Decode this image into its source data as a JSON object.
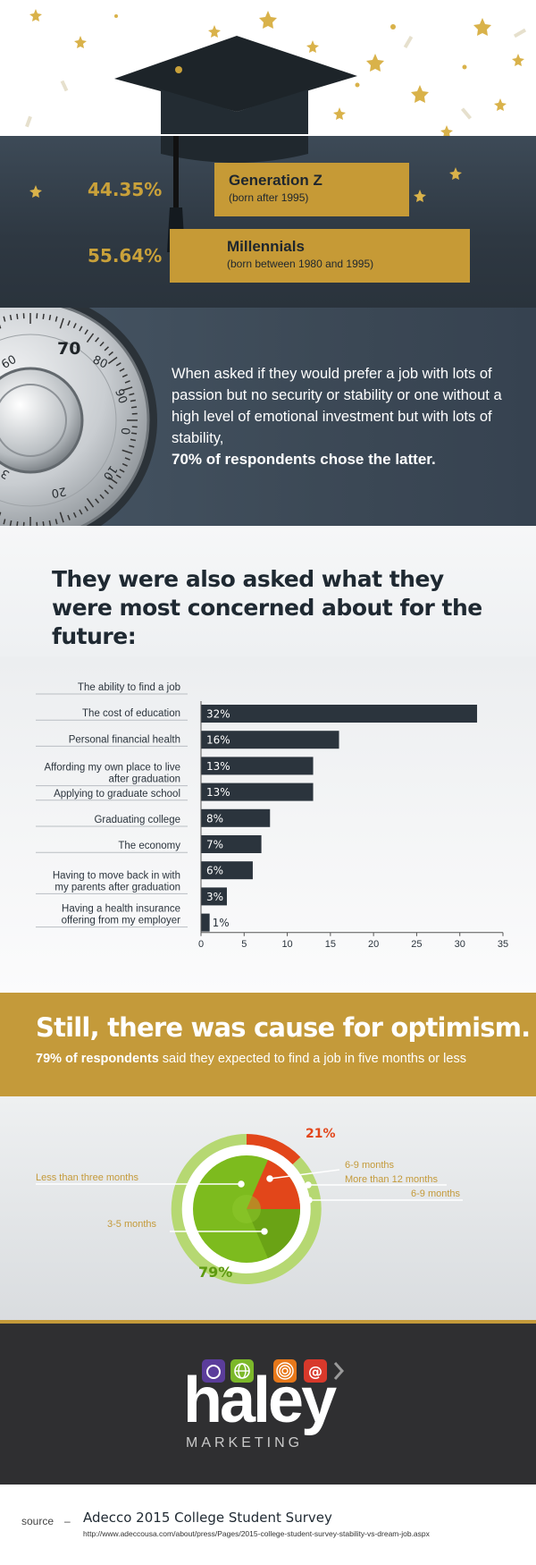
{
  "generations": [
    {
      "percent": "44.35%",
      "name": "Generation Z",
      "detail": "(born after 1995)"
    },
    {
      "percent": "55.64%",
      "name": "Millennials",
      "detail": "(born between 1980 and 1995)"
    }
  ],
  "safe": {
    "dial_numbers": [
      "70",
      "80",
      "90",
      "0",
      "10",
      "20",
      "3",
      "60"
    ],
    "text": "When asked if they would prefer a job with lots of passion but no security or stability or one without a high level of emotional investment but with lots of stability,",
    "highlight": "70% of respondents chose the latter."
  },
  "concerns": {
    "heading": "They were also asked what they were most concerned about for the future:"
  },
  "chart_data": {
    "type": "bar",
    "orientation": "horizontal",
    "categories": [
      "The ability to find a job",
      "The cost of education",
      "Personal financial health",
      "Affording my own place to live after graduation",
      "Applying to graduate school",
      "Graduating college",
      "The economy",
      "Having to move back in with my parents after graduation",
      "Having a health insurance offering from my employer"
    ],
    "category_lines": [
      [
        "The ability to find a job"
      ],
      [
        "The cost of education"
      ],
      [
        "Personal financial health"
      ],
      [
        "Affording my own place to live",
        "after graduation"
      ],
      [
        "Applying to graduate school"
      ],
      [
        "Graduating college"
      ],
      [
        "The economy"
      ],
      [
        "Having to move back in with",
        "my parents after graduation"
      ],
      [
        "Having a health insurance",
        "offering from my employer"
      ]
    ],
    "values": [
      32,
      16,
      13,
      13,
      8,
      7,
      6,
      3,
      1
    ],
    "value_labels": [
      "32%",
      "16%",
      "13%",
      "13%",
      "8%",
      "7%",
      "6%",
      "3%",
      "1%"
    ],
    "xlim": [
      0,
      35
    ],
    "xticks": [
      "0",
      "5",
      "10",
      "15",
      "20",
      "25",
      "30",
      "35"
    ],
    "bar_color": "#2b343d"
  },
  "optimism": {
    "title": "Still, there was cause for optimism.",
    "sub_bold": "79% of respondents",
    "sub_rest": " said they expected to find a job in five months or less"
  },
  "pie": {
    "label_21": "21%",
    "label_79": "79%",
    "left_labels": [
      "Less than three months",
      "3-5 months"
    ],
    "right_labels": [
      "6-9 months",
      "More than 12 months",
      "6-9 months"
    ],
    "green": "#7dbb1e",
    "orange": "#e2461a"
  },
  "logo": {
    "word": "haley",
    "sub": "MARKETING"
  },
  "source": {
    "label": "source",
    "dash": "–",
    "title": "Adecco 2015 College Student Survey",
    "url": "http://www.adeccousa.com/about/press/Pages/2015-college-student-survey-stability-vs-dream-job.aspx"
  }
}
